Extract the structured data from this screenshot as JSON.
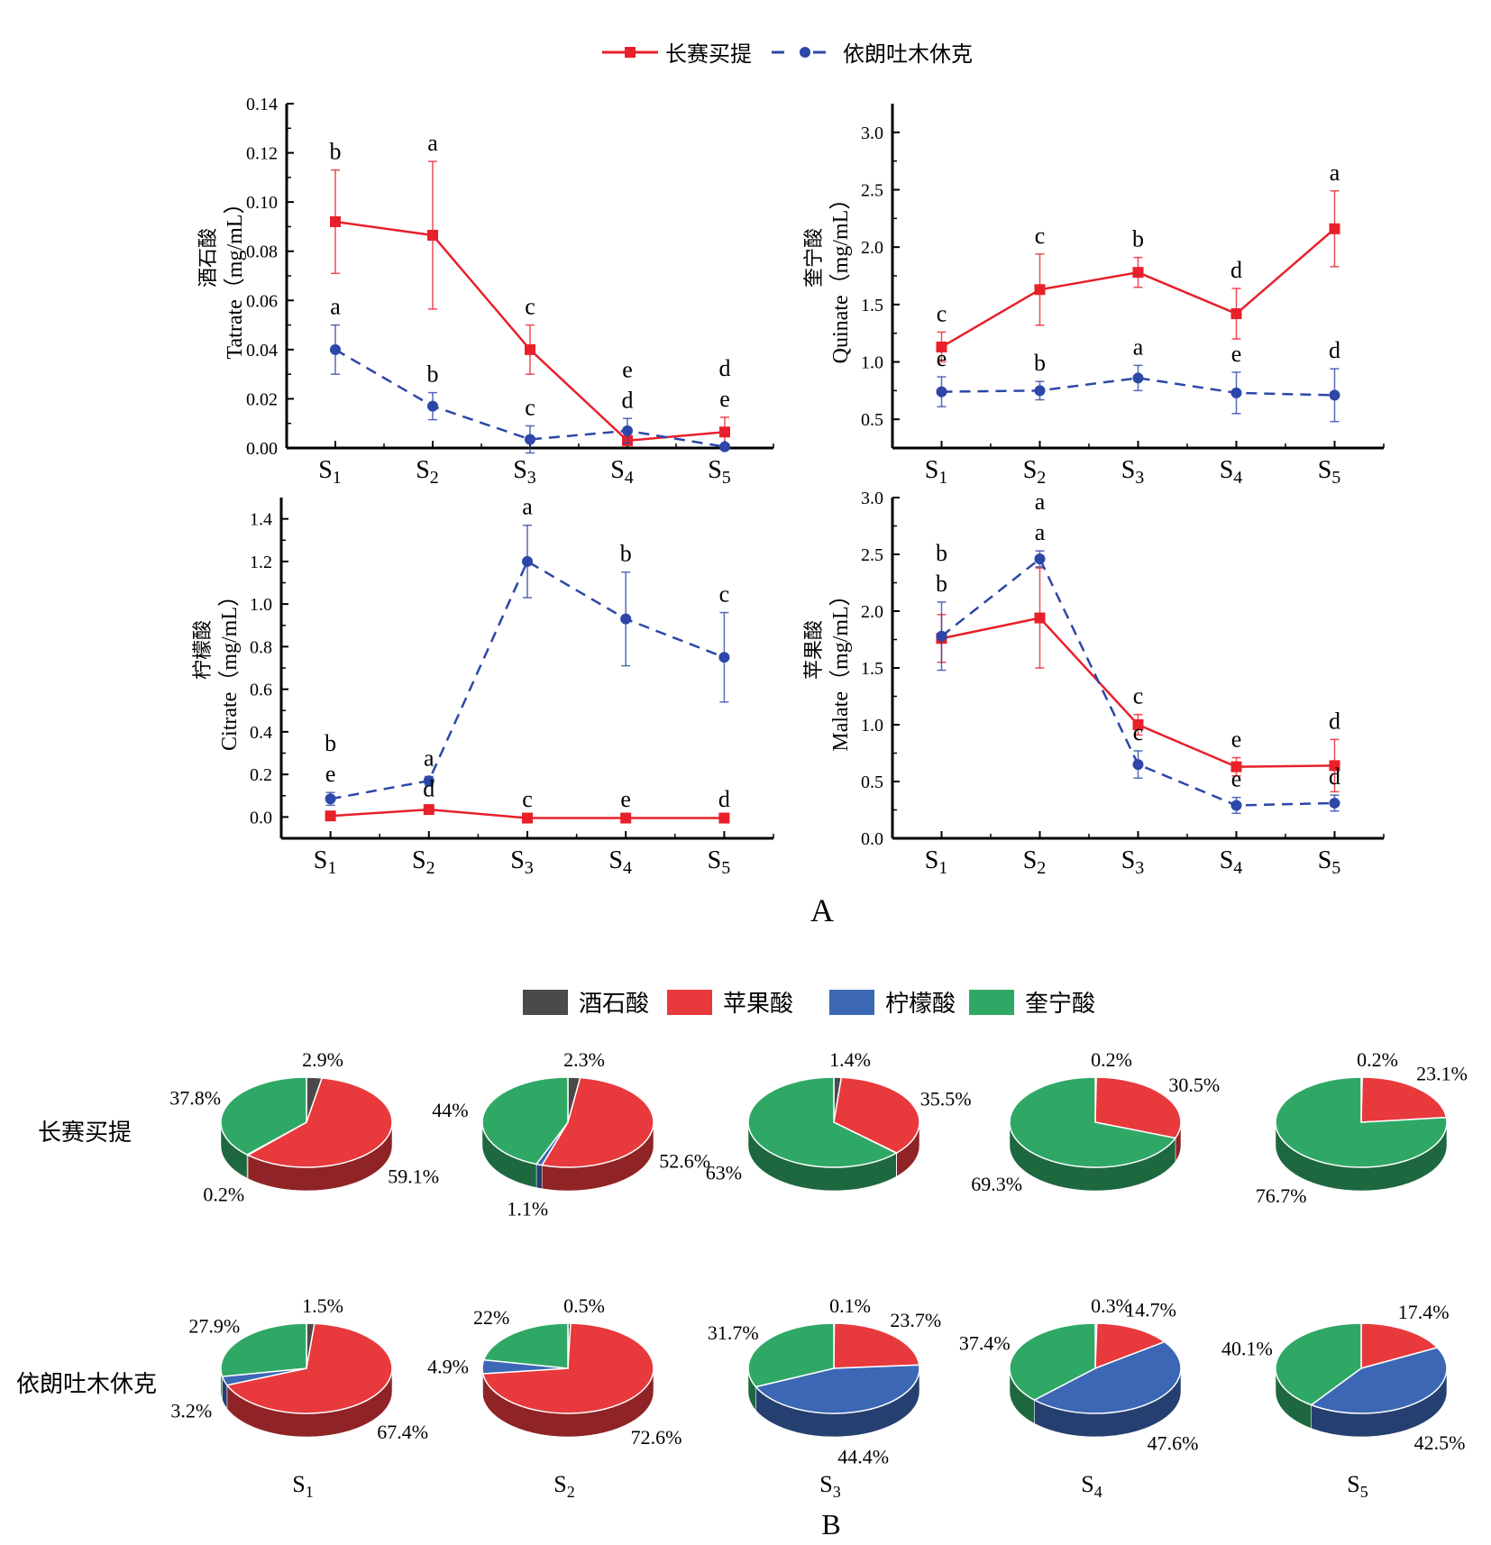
{
  "legend_top": {
    "series": [
      {
        "name": "长赛买提",
        "color": "#e8202a",
        "style": "solid",
        "marker": "square"
      },
      {
        "name": "依朗吐木休克",
        "color": "#2c47a8",
        "style": "dashed",
        "marker": "circle"
      }
    ]
  },
  "panel_labels": {
    "A": "A",
    "B": "B"
  },
  "chart_data": [
    {
      "type": "line",
      "title": "",
      "ylabel_cn": "酒石酸",
      "ylabel": "Tatrate（mg/mL）",
      "xlabel": "",
      "categories": [
        "S1",
        "S2",
        "S3",
        "S4",
        "S5"
      ],
      "ylim": [
        0,
        0.14
      ],
      "yticks": [
        "0.00",
        "0.02",
        "0.04",
        "0.06",
        "0.08",
        "0.10",
        "0.12",
        "0.14"
      ],
      "ytick_values": [
        0,
        0.02,
        0.04,
        0.06,
        0.08,
        0.1,
        0.12,
        0.14
      ],
      "series": [
        {
          "name": "长赛买提",
          "values": [
            0.092,
            0.0865,
            0.04,
            0.003,
            0.0065
          ],
          "errors": [
            0.021,
            0.03,
            0.01,
            0.002,
            0.006
          ],
          "letters": [
            "b",
            "a",
            "c",
            "d",
            "d"
          ]
        },
        {
          "name": "依朗吐木休克",
          "values": [
            0.04,
            0.017,
            0.0035,
            0.007,
            0.0005
          ],
          "errors": [
            0.01,
            0.0055,
            0.0055,
            0.005,
            0.001
          ],
          "letters": [
            "a",
            "b",
            "c",
            "e",
            "e"
          ]
        }
      ]
    },
    {
      "type": "line",
      "title": "",
      "ylabel_cn": "奎宁酸",
      "ylabel": "Quinate（mg/mL）",
      "xlabel": "",
      "categories": [
        "S1",
        "S2",
        "S3",
        "S4",
        "S5"
      ],
      "ylim": [
        0.25,
        3.25
      ],
      "yticks": [
        "0.5",
        "1.0",
        "1.5",
        "2.0",
        "2.5",
        "3.0"
      ],
      "ytick_values": [
        0.5,
        1.0,
        1.5,
        2.0,
        2.5,
        3.0
      ],
      "series": [
        {
          "name": "长赛买提",
          "values": [
            1.13,
            1.63,
            1.78,
            1.42,
            2.16
          ],
          "errors": [
            0.13,
            0.31,
            0.13,
            0.22,
            0.33
          ],
          "letters": [
            "c",
            "c",
            "b",
            "d",
            "a"
          ]
        },
        {
          "name": "依朗吐木休克",
          "values": [
            0.74,
            0.75,
            0.86,
            0.73,
            0.71
          ],
          "errors": [
            0.13,
            0.08,
            0.11,
            0.18,
            0.23
          ],
          "letters": [
            "e",
            "b",
            "a",
            "e",
            "d"
          ]
        }
      ]
    },
    {
      "type": "line",
      "title": "",
      "ylabel_cn": "柠檬酸",
      "ylabel": "Citrate（mg/mL）",
      "xlabel": "",
      "categories": [
        "S1",
        "S2",
        "S3",
        "S4",
        "S5"
      ],
      "ylim": [
        -0.1,
        1.5
      ],
      "yticks": [
        "0.0",
        "0.2",
        "0.4",
        "0.6",
        "0.8",
        "1.0",
        "1.2",
        "1.4"
      ],
      "ytick_values": [
        0,
        0.2,
        0.4,
        0.6,
        0.8,
        1.0,
        1.2,
        1.4
      ],
      "series": [
        {
          "name": "长赛买提",
          "values": [
            0.005,
            0.035,
            -0.005,
            -0.005,
            -0.005
          ],
          "errors": [
            0.005,
            0.01,
            0.003,
            0.003,
            0.003
          ],
          "letters": [
            "e",
            "d",
            "c",
            "e",
            "d"
          ]
        },
        {
          "name": "依朗吐木休克",
          "values": [
            0.085,
            0.17,
            1.2,
            0.93,
            0.75
          ],
          "errors": [
            0.03,
            0.02,
            0.17,
            0.22,
            0.21
          ],
          "letters": [
            "b",
            "a",
            "a",
            "b",
            "c"
          ]
        }
      ]
    },
    {
      "type": "line",
      "title": "",
      "ylabel_cn": "苹果酸",
      "ylabel": "Malate（mg/mL）",
      "xlabel": "",
      "categories": [
        "S1",
        "S2",
        "S3",
        "S4",
        "S5"
      ],
      "ylim": [
        0.0,
        3.0
      ],
      "yticks": [
        "0.0",
        "0.5",
        "1.0",
        "1.5",
        "2.0",
        "2.5",
        "3.0"
      ],
      "ytick_values": [
        0,
        0.5,
        1.0,
        1.5,
        2.0,
        2.5,
        3.0
      ],
      "series": [
        {
          "name": "长赛买提",
          "values": [
            1.76,
            1.94,
            1.0,
            0.63,
            0.64
          ],
          "errors": [
            0.21,
            0.44,
            0.09,
            0.08,
            0.23
          ],
          "letters": [
            "b",
            "a",
            "c",
            "e",
            "d"
          ]
        },
        {
          "name": "依朗吐木休克",
          "values": [
            1.78,
            2.46,
            0.65,
            0.29,
            0.31
          ],
          "errors": [
            0.3,
            0.07,
            0.12,
            0.07,
            0.07
          ],
          "letters": [
            "b",
            "a",
            "c",
            "e",
            "d"
          ]
        }
      ]
    },
    {
      "type": "pie",
      "title": "B",
      "legend": [
        {
          "name": "酒石酸",
          "color": "#4a4a4a"
        },
        {
          "name": "苹果酸",
          "color": "#e8393c"
        },
        {
          "name": "柠檬酸",
          "color": "#3b67b4"
        },
        {
          "name": "奎宁酸",
          "color": "#2fa866"
        }
      ],
      "rows": [
        "长赛买提",
        "依朗吐木休克"
      ],
      "columns": [
        "S1",
        "S2",
        "S3",
        "S4",
        "S5"
      ],
      "pies": [
        [
          {
            "tartrate": 2.9,
            "malate": 59.1,
            "citrate": 0.2,
            "quinate": 37.8,
            "labels": {
              "tartrate": "2.9%",
              "malate": "59.1%",
              "citrate": "0.2%",
              "quinate": "37.8%"
            }
          },
          {
            "tartrate": 2.3,
            "malate": 52.6,
            "citrate": 1.1,
            "quinate": 44.0,
            "labels": {
              "tartrate": "2.3%",
              "malate": "52.6%",
              "citrate": "1.1%",
              "quinate": "44%"
            }
          },
          {
            "tartrate": 1.4,
            "malate": 35.5,
            "citrate": 0.1,
            "quinate": 63.0,
            "labels": {
              "tartrate": "1.4%",
              "malate": "35.5%",
              "citrate": "",
              "quinate": "63%"
            }
          },
          {
            "tartrate": 0.2,
            "malate": 30.5,
            "citrate": 0.0,
            "quinate": 69.3,
            "labels": {
              "tartrate": "0.2%",
              "malate": "30.5%",
              "citrate": "",
              "quinate": "69.3%"
            }
          },
          {
            "tartrate": 0.2,
            "malate": 23.1,
            "citrate": 0.0,
            "quinate": 76.7,
            "labels": {
              "tartrate": "0.2%",
              "malate": "23.1%",
              "citrate": "",
              "quinate": "76.7%"
            }
          }
        ],
        [
          {
            "tartrate": 1.5,
            "malate": 67.4,
            "citrate": 3.2,
            "quinate": 27.9,
            "labels": {
              "tartrate": "1.5%",
              "malate": "67.4%",
              "citrate": "3.2%",
              "quinate": "27.9%"
            }
          },
          {
            "tartrate": 0.5,
            "malate": 72.6,
            "citrate": 4.9,
            "quinate": 22.0,
            "labels": {
              "tartrate": "0.5%",
              "malate": "72.6%",
              "citrate": "4.9%",
              "quinate": "22%"
            }
          },
          {
            "tartrate": 0.1,
            "malate": 23.7,
            "citrate": 44.4,
            "quinate": 31.7,
            "labels": {
              "tartrate": "0.1%",
              "malate": "23.7%",
              "citrate": "44.4%",
              "quinate": "31.7%"
            }
          },
          {
            "tartrate": 0.3,
            "malate": 14.7,
            "citrate": 47.6,
            "quinate": 37.4,
            "labels": {
              "tartrate": "0.3%",
              "malate": "14.7%",
              "citrate": "47.6%",
              "quinate": "37.4%"
            }
          },
          {
            "tartrate": 0.0,
            "malate": 17.4,
            "citrate": 42.5,
            "quinate": 40.1,
            "labels": {
              "tartrate": "",
              "malate": "17.4%",
              "citrate": "42.5%",
              "quinate": "40.1%"
            }
          }
        ]
      ]
    }
  ]
}
